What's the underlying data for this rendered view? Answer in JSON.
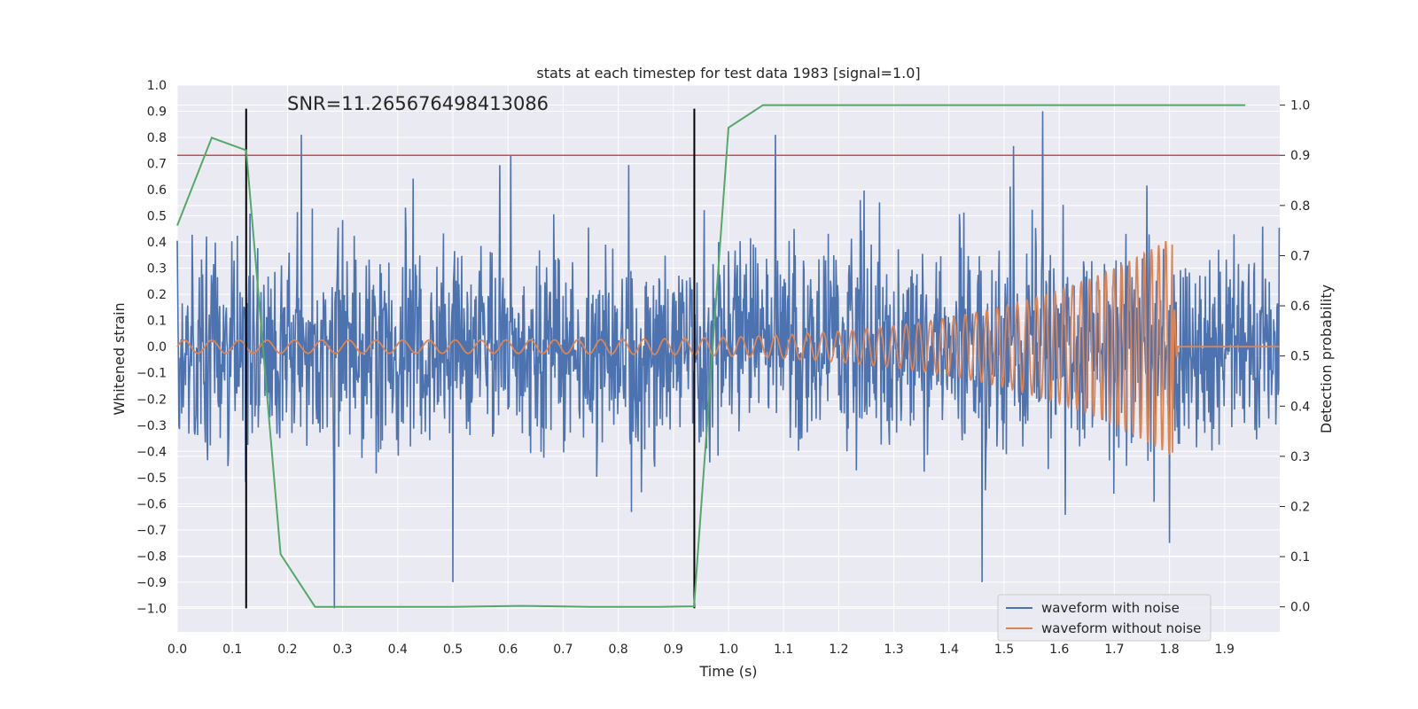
{
  "chart_data": {
    "type": "line",
    "title": "stats at each timestep for test data 1983 [signal=1.0]",
    "xlabel": "Time (s)",
    "ylabel": "Whitened strain",
    "y2label": "Detection probability",
    "xlim": [
      0.0,
      2.0
    ],
    "ylim": [
      -1.09,
      1.0
    ],
    "y2lim": [
      -0.05,
      1.04
    ],
    "grid": true,
    "xticks": [
      "0.0",
      "0.1",
      "0.2",
      "0.3",
      "0.4",
      "0.5",
      "0.6",
      "0.7",
      "0.8",
      "0.9",
      "1.0",
      "1.1",
      "1.2",
      "1.3",
      "1.4",
      "1.5",
      "1.6",
      "1.7",
      "1.8",
      "1.9"
    ],
    "yticks": [
      "1.0",
      "0.9",
      "0.8",
      "0.7",
      "0.6",
      "0.5",
      "0.4",
      "0.3",
      "0.2",
      "0.1",
      "0.0",
      "−0.1",
      "−0.2",
      "−0.3",
      "−0.4",
      "−0.5",
      "−0.6",
      "−0.7",
      "−0.8",
      "−0.9",
      "−1.0"
    ],
    "y2ticks": [
      "1.0",
      "0.9",
      "0.8",
      "0.7",
      "0.6",
      "0.5",
      "0.4",
      "0.3",
      "0.2",
      "0.1",
      "0.0"
    ],
    "annotation": "SNR=11.265676498413086",
    "threshold": {
      "value": 0.9,
      "axis": "y2",
      "color": "#c44e52"
    },
    "event_markers": {
      "x": [
        0.125,
        0.938
      ],
      "y_range": [
        -1.0,
        0.91
      ],
      "color": "#000000"
    },
    "series": [
      {
        "name": "waveform with noise",
        "axis": "y",
        "color": "#4c72b0",
        "style": "noise",
        "approx_std": 0.2,
        "notable_peaks": [
          {
            "x": 0.225,
            "y": 0.81
          },
          {
            "x": 0.605,
            "y": 0.73
          },
          {
            "x": 1.085,
            "y": 0.81
          },
          {
            "x": 1.57,
            "y": 0.9
          },
          {
            "x": 0.285,
            "y": -1.0
          },
          {
            "x": 0.5,
            "y": -0.9
          },
          {
            "x": 1.46,
            "y": -0.9
          },
          {
            "x": 1.8,
            "y": -0.75
          }
        ]
      },
      {
        "name": "waveform without noise",
        "axis": "y",
        "color": "#dd8452",
        "style": "chirp",
        "chirp": {
          "start_amp": 0.025,
          "end_amp": 0.42,
          "start_freq_hz": 20,
          "end_freq_hz": 80,
          "merger_time": 1.805,
          "baseline": 0.0
        }
      },
      {
        "name": "detection probability",
        "axis": "y2",
        "color": "#55a868",
        "style": "line",
        "x": [
          0.0,
          0.0625,
          0.125,
          0.1875,
          0.25,
          0.3125,
          0.375,
          0.4375,
          0.5,
          0.5625,
          0.625,
          0.6875,
          0.75,
          0.8125,
          0.875,
          0.9375,
          1.0,
          1.0625,
          1.125,
          1.1875,
          1.25,
          1.3125,
          1.375,
          1.4375,
          1.5,
          1.5625,
          1.625,
          1.6875,
          1.75,
          1.8125,
          1.875,
          1.9375
        ],
        "values": [
          0.76,
          0.935,
          0.91,
          0.105,
          0.0,
          0.0,
          0.0,
          0.0,
          0.0,
          0.001,
          0.002,
          0.001,
          0.0,
          0.0,
          0.0,
          0.001,
          0.955,
          1.0,
          1.0,
          1.0,
          1.0,
          1.0,
          1.0,
          1.0,
          1.0,
          1.0,
          1.0,
          1.0,
          1.0,
          1.0,
          1.0,
          1.0
        ]
      }
    ],
    "legend": {
      "placement": "lower-right",
      "entries": [
        "waveform with noise",
        "waveform without noise"
      ]
    }
  }
}
